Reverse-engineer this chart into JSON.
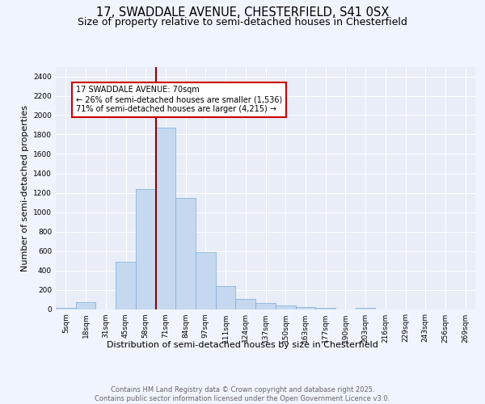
{
  "title1": "17, SWADDALE AVENUE, CHESTERFIELD, S41 0SX",
  "title2": "Size of property relative to semi-detached houses in Chesterfield",
  "xlabel": "Distribution of semi-detached houses by size in Chesterfield",
  "ylabel": "Number of semi-detached properties",
  "categories": [
    "5sqm",
    "18sqm",
    "31sqm",
    "45sqm",
    "58sqm",
    "71sqm",
    "84sqm",
    "97sqm",
    "111sqm",
    "124sqm",
    "137sqm",
    "150sqm",
    "163sqm",
    "177sqm",
    "190sqm",
    "203sqm",
    "216sqm",
    "229sqm",
    "243sqm",
    "256sqm",
    "269sqm"
  ],
  "values": [
    15,
    75,
    0,
    490,
    1240,
    1870,
    1145,
    590,
    240,
    105,
    60,
    35,
    20,
    15,
    0,
    12,
    0,
    0,
    0,
    0,
    0
  ],
  "bar_color": "#c5d8f0",
  "bar_edge_color": "#7aaed6",
  "vline_color": "#8b0000",
  "annotation_text": "17 SWADDALE AVENUE: 70sqm\n← 26% of semi-detached houses are smaller (1,536)\n71% of semi-detached houses are larger (4,215) →",
  "box_color": "#ffffff",
  "box_edge_color": "#cc0000",
  "ylim": [
    0,
    2500
  ],
  "yticks": [
    0,
    200,
    400,
    600,
    800,
    1000,
    1200,
    1400,
    1600,
    1800,
    2000,
    2200,
    2400
  ],
  "bg_color": "#f0f4ff",
  "plot_bg_color": "#e8edf8",
  "footer_text": "Contains HM Land Registry data © Crown copyright and database right 2025.\nContains public sector information licensed under the Open Government Licence v3.0.",
  "title_fontsize": 10.5,
  "subtitle_fontsize": 9,
  "axis_label_fontsize": 8,
  "tick_fontsize": 6.5,
  "footer_fontsize": 6.0,
  "annot_fontsize": 7.0
}
